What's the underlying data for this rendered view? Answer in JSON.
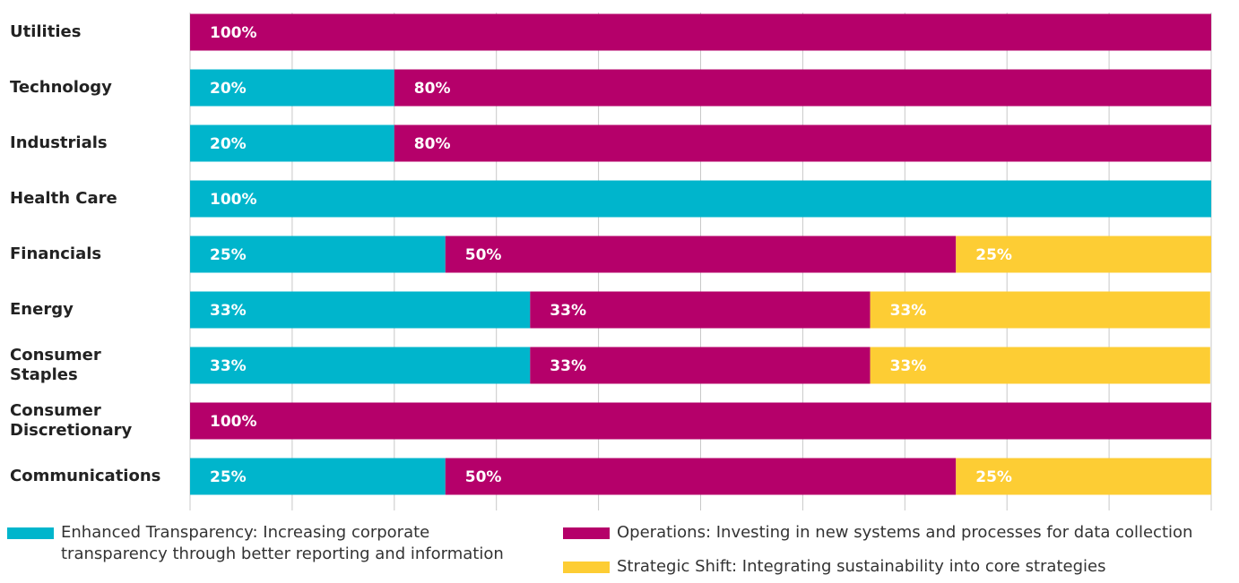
{
  "chart_data": {
    "type": "stacked_bar_horizontal",
    "categories": [
      "Utilities",
      "Technology",
      "Industrials",
      "Health Care",
      "Financials",
      "Energy",
      "Consumer Staples",
      "Consumer Discretionary",
      "Communications"
    ],
    "series": [
      {
        "name": "Enhanced Transparency: Increasing corporate transparency through better reporting and information",
        "color": "#00b5cc",
        "values": [
          null,
          20,
          20,
          100,
          25,
          33.3,
          33.3,
          null,
          25
        ],
        "value_labels": [
          null,
          "20%",
          "20%",
          "100%",
          "25%",
          "33%",
          "33%",
          null,
          "25%"
        ]
      },
      {
        "name": "Operations: Investing in new systems and processes for data collection",
        "color": "#b5006a",
        "values": [
          100,
          80,
          80,
          null,
          50,
          33.3,
          33.3,
          100,
          50
        ],
        "value_labels": [
          "100%",
          "80%",
          "80%",
          null,
          "50%",
          "33%",
          "33%",
          "100%",
          "50%"
        ]
      },
      {
        "name": "Strategic Shift: Integrating sustainability into core strategies",
        "color": "#fdcd34",
        "values": [
          null,
          null,
          null,
          null,
          25,
          33.3,
          33.3,
          null,
          25
        ],
        "value_labels": [
          null,
          null,
          null,
          null,
          "25%",
          "33%",
          "33%",
          null,
          "25%"
        ]
      }
    ],
    "xlim": [
      0,
      100
    ],
    "xticks": [
      0,
      10,
      20,
      30,
      40,
      50,
      60,
      70,
      80,
      90,
      100
    ],
    "grid": true
  }
}
